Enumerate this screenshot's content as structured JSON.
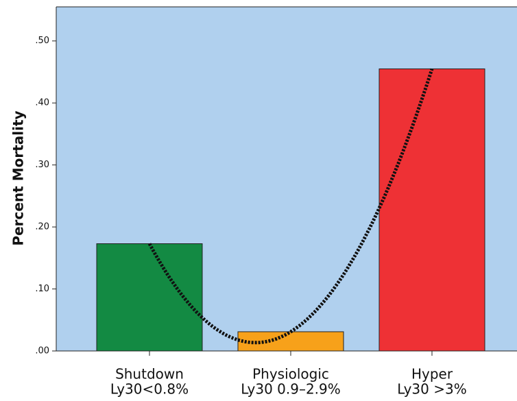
{
  "chart_data": {
    "type": "bar",
    "y_label": "Percent Mortality",
    "categories": [
      [
        "Shutdown",
        "Ly30<0.8%"
      ],
      [
        "Physiologic",
        "Ly30 0.9–2.9%"
      ],
      [
        "Hyper",
        "Ly30 >3%"
      ]
    ],
    "values": [
      0.173,
      0.031,
      0.455
    ],
    "colors": [
      "#138a43",
      "#f7a11a",
      "#ee3135"
    ],
    "ylim": [
      0,
      0.555
    ],
    "yticks": [
      {
        "value": 0,
        "label": ".00"
      },
      {
        "value": 0.1,
        "label": ".10"
      },
      {
        "value": 0.2,
        "label": ".20"
      },
      {
        "value": 0.3,
        "label": ".30"
      },
      {
        "value": 0.4,
        "label": ".40"
      },
      {
        "value": 0.5,
        "label": ".50"
      }
    ],
    "background": "#b0d0ee",
    "trend_line": true
  }
}
